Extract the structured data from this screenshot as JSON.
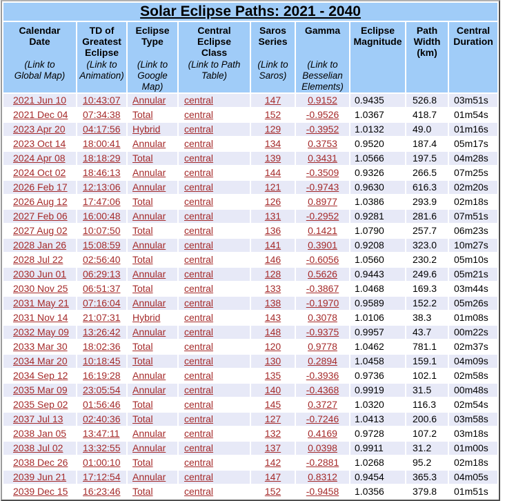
{
  "title": "Solar Eclipse Paths: 2021 - 2040",
  "columns": [
    {
      "label": "Calendar\nDate",
      "sublabel": "(Link to\nGlobal Map)"
    },
    {
      "label": "TD of\nGreatest\nEclipse",
      "sublabel": "(Link to\nAnimation)"
    },
    {
      "label": "Eclipse\nType",
      "sublabel": "(Link to\nGoogle\nMap)"
    },
    {
      "label": "Central\nEclipse\nClass",
      "sublabel": "(Link to Path\nTable)"
    },
    {
      "label": "Saros\nSeries",
      "sublabel": "(Link to\nSaros)"
    },
    {
      "label": "Gamma",
      "sublabel": "(Link to\nBesselian\nElements)"
    },
    {
      "label": "Eclipse\nMagnitude",
      "sublabel": ""
    },
    {
      "label": "Path\nWidth\n(km)",
      "sublabel": ""
    },
    {
      "label": "Central\nDuration",
      "sublabel": ""
    }
  ],
  "rows": [
    [
      "2021 Jun 10",
      "10:43:07",
      "Annular",
      "central",
      "147",
      "0.9152",
      "0.9435",
      "526.8",
      "03m51s"
    ],
    [
      "2021 Dec 04",
      "07:34:38",
      "Total",
      "central",
      "152",
      "-0.9526",
      "1.0367",
      "418.7",
      "01m54s"
    ],
    [
      "2023 Apr 20",
      "04:17:56",
      "Hybrid",
      "central",
      "129",
      "-0.3952",
      "1.0132",
      "49.0",
      "01m16s"
    ],
    [
      "2023 Oct 14",
      "18:00:41",
      "Annular",
      "central",
      "134",
      "0.3753",
      "0.9520",
      "187.4",
      "05m17s"
    ],
    [
      "2024 Apr 08",
      "18:18:29",
      "Total",
      "central",
      "139",
      "0.3431",
      "1.0566",
      "197.5",
      "04m28s"
    ],
    [
      "2024 Oct 02",
      "18:46:13",
      "Annular",
      "central",
      "144",
      "-0.3509",
      "0.9326",
      "266.5",
      "07m25s"
    ],
    [
      "2026 Feb 17",
      "12:13:06",
      "Annular",
      "central",
      "121",
      "-0.9743",
      "0.9630",
      "616.3",
      "02m20s"
    ],
    [
      "2026 Aug 12",
      "17:47:06",
      "Total",
      "central",
      "126",
      "0.8977",
      "1.0386",
      "293.9",
      "02m18s"
    ],
    [
      "2027 Feb 06",
      "16:00:48",
      "Annular",
      "central",
      "131",
      "-0.2952",
      "0.9281",
      "281.6",
      "07m51s"
    ],
    [
      "2027 Aug 02",
      "10:07:50",
      "Total",
      "central",
      "136",
      "0.1421",
      "1.0790",
      "257.7",
      "06m23s"
    ],
    [
      "2028 Jan 26",
      "15:08:59",
      "Annular",
      "central",
      "141",
      "0.3901",
      "0.9208",
      "323.0",
      "10m27s"
    ],
    [
      "2028 Jul 22",
      "02:56:40",
      "Total",
      "central",
      "146",
      "-0.6056",
      "1.0560",
      "230.2",
      "05m10s"
    ],
    [
      "2030 Jun 01",
      "06:29:13",
      "Annular",
      "central",
      "128",
      "0.5626",
      "0.9443",
      "249.6",
      "05m21s"
    ],
    [
      "2030 Nov 25",
      "06:51:37",
      "Total",
      "central",
      "133",
      "-0.3867",
      "1.0468",
      "169.3",
      "03m44s"
    ],
    [
      "2031 May 21",
      "07:16:04",
      "Annular",
      "central",
      "138",
      "-0.1970",
      "0.9589",
      "152.2",
      "05m26s"
    ],
    [
      "2031 Nov 14",
      "21:07:31",
      "Hybrid",
      "central",
      "143",
      "0.3078",
      "1.0106",
      "38.3",
      "01m08s"
    ],
    [
      "2032 May 09",
      "13:26:42",
      "Annular",
      "central",
      "148",
      "-0.9375",
      "0.9957",
      "43.7",
      "00m22s"
    ],
    [
      "2033 Mar 30",
      "18:02:36",
      "Total",
      "central",
      "120",
      "0.9778",
      "1.0462",
      "781.1",
      "02m37s"
    ],
    [
      "2034 Mar 20",
      "10:18:45",
      "Total",
      "central",
      "130",
      "0.2894",
      "1.0458",
      "159.1",
      "04m09s"
    ],
    [
      "2034 Sep 12",
      "16:19:28",
      "Annular",
      "central",
      "135",
      "-0.3936",
      "0.9736",
      "102.1",
      "02m58s"
    ],
    [
      "2035 Mar 09",
      "23:05:54",
      "Annular",
      "central",
      "140",
      "-0.4368",
      "0.9919",
      "31.5",
      "00m48s"
    ],
    [
      "2035 Sep 02",
      "01:56:46",
      "Total",
      "central",
      "145",
      "0.3727",
      "1.0320",
      "116.3",
      "02m54s"
    ],
    [
      "2037 Jul 13",
      "02:40:36",
      "Total",
      "central",
      "127",
      "-0.7246",
      "1.0413",
      "200.6",
      "03m58s"
    ],
    [
      "2038 Jan 05",
      "13:47:11",
      "Annular",
      "central",
      "132",
      "0.4169",
      "0.9728",
      "107.2",
      "03m18s"
    ],
    [
      "2038 Jul 02",
      "13:32:55",
      "Annular",
      "central",
      "137",
      "0.0398",
      "0.9911",
      "31.2",
      "01m00s"
    ],
    [
      "2038 Dec 26",
      "01:00:10",
      "Total",
      "central",
      "142",
      "-0.2881",
      "1.0268",
      "95.2",
      "02m18s"
    ],
    [
      "2039 Jun 21",
      "17:12:54",
      "Annular",
      "central",
      "147",
      "0.8312",
      "0.9454",
      "365.3",
      "04m05s"
    ],
    [
      "2039 Dec 15",
      "16:23:46",
      "Total",
      "central",
      "152",
      "-0.9458",
      "1.0356",
      "379.8",
      "01m51s"
    ]
  ],
  "colors": {
    "header_blue": "#A0CCF8",
    "row_stripe": "#E7E9F7",
    "link_red": "#A52A2A"
  }
}
